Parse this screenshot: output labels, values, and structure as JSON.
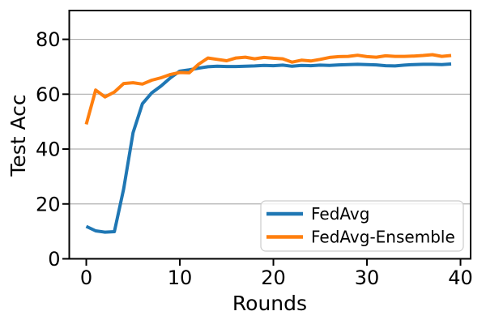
{
  "chart_data": {
    "type": "line",
    "title": "",
    "xlabel": "Rounds",
    "ylabel": "Test Acc",
    "x": [
      0,
      1,
      2,
      3,
      4,
      5,
      6,
      7,
      8,
      9,
      10,
      11,
      12,
      13,
      14,
      15,
      16,
      17,
      18,
      19,
      20,
      21,
      22,
      23,
      24,
      25,
      26,
      27,
      28,
      29,
      30,
      31,
      32,
      33,
      34,
      35,
      36,
      37,
      38,
      39
    ],
    "series": [
      {
        "name": "FedAvg",
        "color": "#1f77b4",
        "values": [
          11.8,
          10.2,
          9.7,
          9.9,
          25.5,
          46.0,
          56.5,
          60.5,
          63.0,
          66.0,
          68.4,
          68.9,
          69.5,
          70.0,
          70.2,
          70.1,
          70.1,
          70.2,
          70.3,
          70.5,
          70.4,
          70.6,
          70.2,
          70.5,
          70.4,
          70.6,
          70.5,
          70.7,
          70.8,
          70.9,
          70.8,
          70.7,
          70.4,
          70.3,
          70.6,
          70.8,
          70.9,
          70.9,
          70.8,
          71.0
        ]
      },
      {
        "name": "FedAvg-Ensemble",
        "color": "#ff7f0e",
        "values": [
          49.0,
          61.5,
          59.0,
          60.8,
          63.9,
          64.2,
          63.7,
          65.1,
          66.0,
          67.2,
          67.9,
          67.8,
          70.9,
          73.2,
          72.7,
          72.2,
          73.2,
          73.5,
          72.9,
          73.4,
          73.1,
          72.9,
          71.7,
          72.4,
          72.1,
          72.7,
          73.4,
          73.7,
          73.8,
          74.2,
          73.7,
          73.5,
          74.0,
          73.8,
          73.8,
          73.9,
          74.1,
          74.4,
          73.8,
          74.1
        ]
      }
    ],
    "xticks": [
      0,
      10,
      20,
      30,
      40
    ],
    "yticks": [
      0,
      20,
      40,
      60,
      80
    ],
    "xtick_labels": [
      "0",
      "10",
      "20",
      "30",
      "40"
    ],
    "ytick_labels": [
      "0",
      "20",
      "40",
      "60",
      "80"
    ],
    "xlim": [
      -1.82,
      41.08
    ],
    "ylim": [
      0,
      90.5
    ],
    "grid": "horizontal",
    "grid_color": "#b0b0b0",
    "spine_color": "#000000",
    "line_width": 4,
    "legend": {
      "position": "lower right",
      "border_color": "#cccccc",
      "background": "rgba(255,255,255,0.8)",
      "entries": [
        "FedAvg",
        "FedAvg-Ensemble"
      ]
    }
  }
}
